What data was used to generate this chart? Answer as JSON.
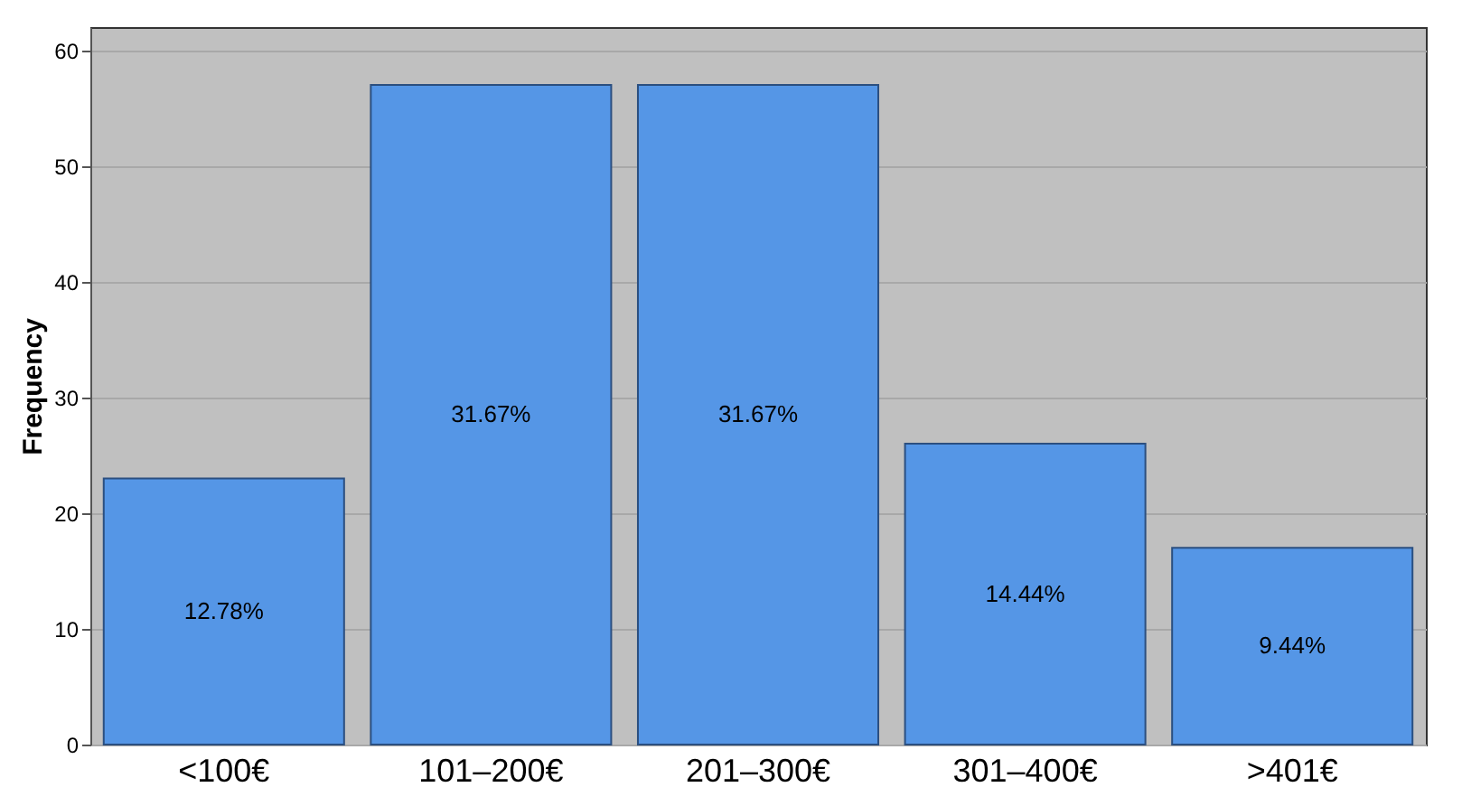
{
  "chart_data": {
    "type": "bar",
    "ylabel": "Frequency",
    "categories": [
      "<100€",
      "101–200€",
      "201–300€",
      "301–400€",
      ">401€"
    ],
    "values": [
      23,
      57,
      57,
      26,
      17
    ],
    "annotations": [
      "12.78%",
      "31.67%",
      "31.67%",
      "14.44%",
      "9.44%"
    ],
    "color": "#5596e6",
    "ylim": [
      0,
      62
    ],
    "yticks": [
      0,
      10,
      20,
      30,
      40,
      50,
      60
    ],
    "grid": "y"
  }
}
